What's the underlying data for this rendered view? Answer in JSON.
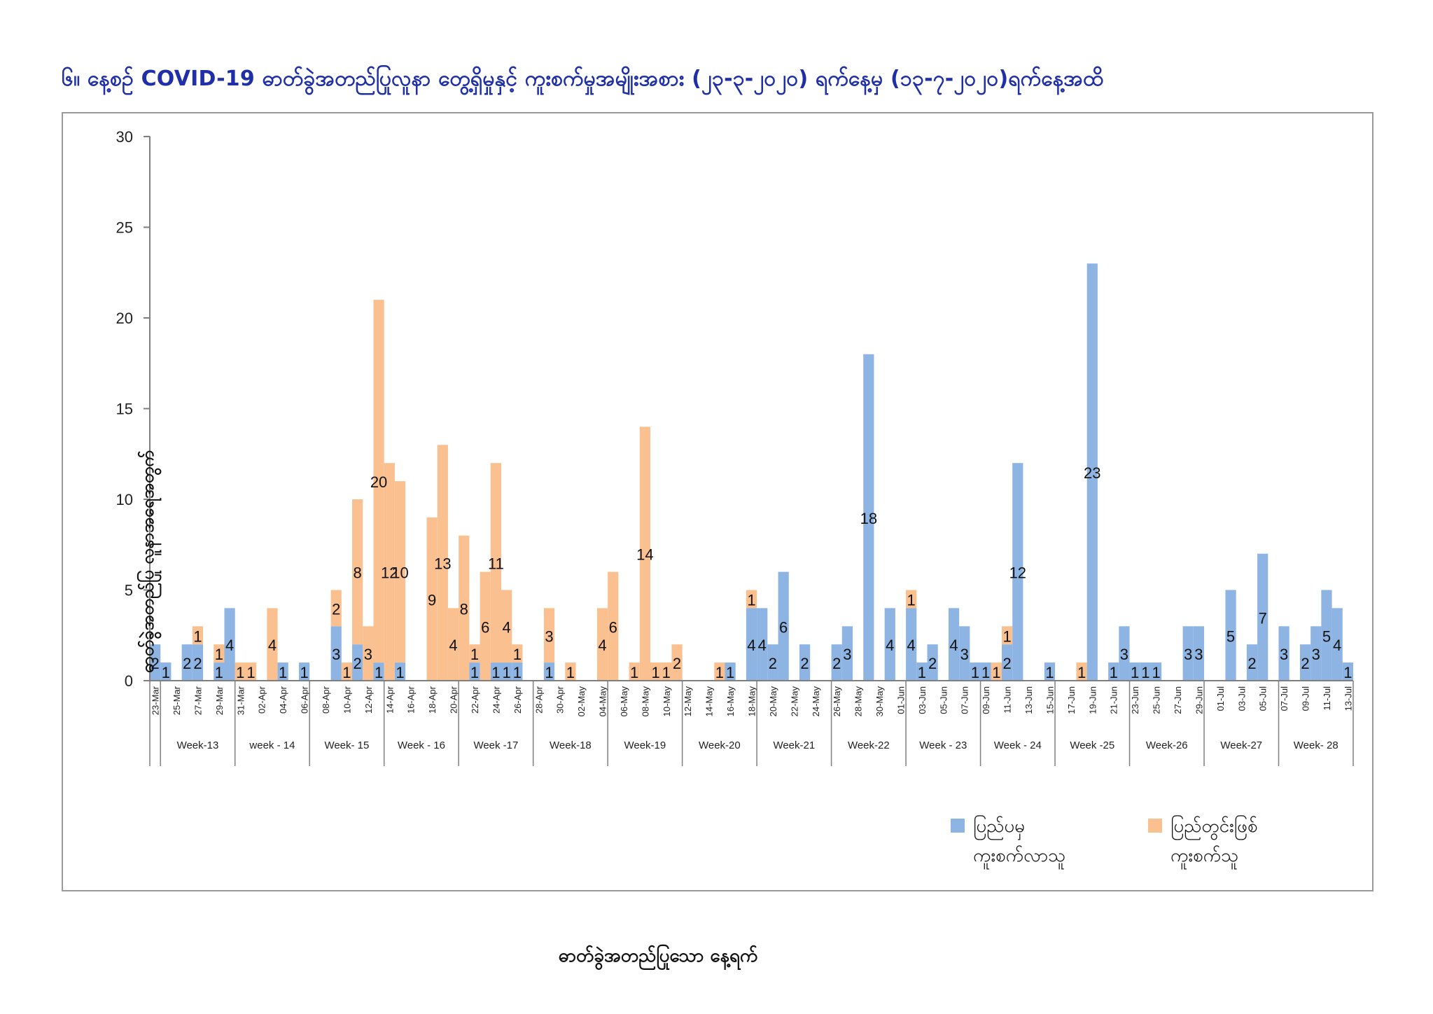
{
  "page": {
    "title": "၆။ နေ့စဉ် COVID-19 ဓာတ်ခွဲအတည်ပြုလူနာ တွေ့ရှိမှုနှင့် ကူးစက်မှုအမျိုးအစား (၂၃-၃-၂၀၂၀) ရက်နေ့မှ (၁၃-၇-၂၀၂၀)ရက်နေ့အထိ"
  },
  "colors": {
    "imported": "#8DB4E2",
    "local": "#FAC090",
    "title": "#1f2fa8",
    "axis": "#7f7f7f"
  },
  "chart_data": {
    "type": "bar",
    "stacked": true,
    "ylabel": "ဓာတ်ခွဲအတည်ပြု လူနာအရေအတွက်",
    "xlabel": "ဓာတ်ခွဲအတည်ပြုသော နေ့ရက်",
    "ylim": [
      0,
      30
    ],
    "yticks": [
      0,
      5,
      10,
      15,
      20,
      25,
      30
    ],
    "legend_position": "bottom-right",
    "dates": [
      "23-Mar",
      "24-Mar",
      "25-Mar",
      "26-Mar",
      "27-Mar",
      "28-Mar",
      "29-Mar",
      "30-Mar",
      "31-Mar",
      "01-Apr",
      "02-Apr",
      "03-Apr",
      "04-Apr",
      "05-Apr",
      "06-Apr",
      "07-Apr",
      "08-Apr",
      "09-Apr",
      "10-Apr",
      "11-Apr",
      "12-Apr",
      "13-Apr",
      "14-Apr",
      "15-Apr",
      "16-Apr",
      "17-Apr",
      "18-Apr",
      "19-Apr",
      "20-Apr",
      "21-Apr",
      "22-Apr",
      "23-Apr",
      "24-Apr",
      "25-Apr",
      "26-Apr",
      "27-Apr",
      "28-Apr",
      "29-Apr",
      "30-Apr",
      "01-May",
      "02-May",
      "03-May",
      "04-May",
      "05-May",
      "06-May",
      "07-May",
      "08-May",
      "09-May",
      "10-May",
      "11-May",
      "12-May",
      "13-May",
      "14-May",
      "15-May",
      "16-May",
      "17-May",
      "18-May",
      "19-May",
      "20-May",
      "21-May",
      "22-May",
      "23-May",
      "24-May",
      "25-May",
      "26-May",
      "27-May",
      "28-May",
      "29-May",
      "30-May",
      "31-May",
      "01-Jun",
      "02-Jun",
      "03-Jun",
      "04-Jun",
      "05-Jun",
      "06-Jun",
      "07-Jun",
      "08-Jun",
      "09-Jun",
      "10-Jun",
      "11-Jun",
      "12-Jun",
      "13-Jun",
      "14-Jun",
      "15-Jun",
      "16-Jun",
      "17-Jun",
      "18-Jun",
      "19-Jun",
      "20-Jun",
      "21-Jun",
      "22-Jun",
      "23-Jun",
      "24-Jun",
      "25-Jun",
      "26-Jun",
      "27-Jun",
      "28-Jun",
      "29-Jun",
      "30-Jun",
      "01-Jul",
      "02-Jul",
      "03-Jul",
      "04-Jul",
      "05-Jul",
      "06-Jul",
      "07-Jul",
      "08-Jul",
      "09-Jul",
      "10-Jul",
      "11-Jul",
      "12-Jul",
      "13-Jul"
    ],
    "tick_labels": [
      "23-Mar",
      "25-Mar",
      "27-Mar",
      "29-Mar",
      "31-Mar",
      "02-Apr",
      "04-Apr",
      "06-Apr",
      "08-Apr",
      "10-Apr",
      "12-Apr",
      "14-Apr",
      "16-Apr",
      "18-Apr",
      "20-Apr",
      "22-Apr",
      "24-Apr",
      "26-Apr",
      "28-Apr",
      "30-Apr",
      "02-May",
      "04-May",
      "06-May",
      "08-May",
      "10-May",
      "12-May",
      "14-May",
      "16-May",
      "18-May",
      "20-May",
      "22-May",
      "24-May",
      "26-May",
      "28-May",
      "30-May",
      "01-Jun",
      "03-Jun",
      "05-Jun",
      "07-Jun",
      "09-Jun",
      "11-Jun",
      "13-Jun",
      "15-Jun",
      "17-Jun",
      "19-Jun",
      "21-Jun",
      "23-Jun",
      "25-Jun",
      "27-Jun",
      "29-Jun",
      "01-Jul",
      "03-Jul",
      "05-Jul",
      "07-Jul",
      "09-Jul",
      "11-Jul",
      "13-Jul"
    ],
    "weeks": [
      {
        "label": "Week-13",
        "start": "24-Mar",
        "end": "30-Mar"
      },
      {
        "label": "week - 14",
        "start": "31-Mar",
        "end": "06-Apr"
      },
      {
        "label": "Week- 15",
        "start": "07-Apr",
        "end": "13-Apr"
      },
      {
        "label": "Week - 16",
        "start": "14-Apr",
        "end": "20-Apr"
      },
      {
        "label": "Week -17",
        "start": "21-Apr",
        "end": "27-Apr"
      },
      {
        "label": "Week-18",
        "start": "28-Apr",
        "end": "04-May"
      },
      {
        "label": "Week-19",
        "start": "05-May",
        "end": "11-May"
      },
      {
        "label": "Week-20",
        "start": "12-May",
        "end": "18-May"
      },
      {
        "label": "Week-21",
        "start": "19-May",
        "end": "25-May"
      },
      {
        "label": "Week-22",
        "start": "26-May",
        "end": "01-Jun"
      },
      {
        "label": "Week - 23",
        "start": "02-Jun",
        "end": "08-Jun"
      },
      {
        "label": "Week - 24",
        "start": "09-Jun",
        "end": "15-Jun"
      },
      {
        "label": "Week -25",
        "start": "16-Jun",
        "end": "22-Jun"
      },
      {
        "label": "Week-26",
        "start": "23-Jun",
        "end": "29-Jun"
      },
      {
        "label": "Week-27",
        "start": "30-Jun",
        "end": "06-Jul"
      },
      {
        "label": "Week- 28",
        "start": "07-Jul",
        "end": "13-Jul"
      }
    ],
    "series": [
      {
        "name": "ပြည်ပမှ ကူးစက်လာသူ",
        "color": "#8DB4E2",
        "values": [
          2,
          1,
          0,
          2,
          2,
          0,
          1,
          4,
          0,
          0,
          0,
          0,
          1,
          0,
          1,
          0,
          0,
          3,
          0,
          2,
          0,
          1,
          0,
          1,
          0,
          0,
          0,
          0,
          0,
          0,
          1,
          0,
          1,
          1,
          1,
          0,
          0,
          1,
          0,
          0,
          0,
          0,
          0,
          0,
          0,
          0,
          0,
          0,
          0,
          0,
          0,
          0,
          0,
          0,
          1,
          0,
          4,
          4,
          2,
          6,
          0,
          2,
          0,
          0,
          2,
          3,
          0,
          18,
          0,
          4,
          0,
          4,
          1,
          2,
          0,
          4,
          3,
          1,
          1,
          0,
          2,
          12,
          0,
          0,
          1,
          0,
          0,
          0,
          23,
          0,
          1,
          3,
          1,
          1,
          1,
          0,
          0,
          3,
          3,
          0,
          0,
          5,
          0,
          2,
          7,
          0,
          3,
          0,
          2,
          3,
          5,
          4,
          1
        ]
      },
      {
        "name": "ပြည်တွင်းဖြစ် ကူးစက်သူ",
        "color": "#FAC090",
        "values": [
          0,
          0,
          0,
          0,
          1,
          0,
          1,
          0,
          1,
          1,
          0,
          4,
          0,
          0,
          0,
          0,
          0,
          2,
          1,
          8,
          3,
          20,
          12,
          10,
          0,
          0,
          9,
          13,
          4,
          8,
          1,
          6,
          11,
          4,
          1,
          0,
          0,
          3,
          0,
          1,
          0,
          0,
          4,
          6,
          0,
          1,
          14,
          1,
          1,
          2,
          0,
          0,
          0,
          1,
          0,
          0,
          1,
          0,
          0,
          0,
          0,
          0,
          0,
          0,
          0,
          0,
          0,
          0,
          0,
          0,
          0,
          1,
          0,
          0,
          0,
          0,
          0,
          0,
          0,
          1,
          1,
          0,
          0,
          0,
          0,
          0,
          0,
          1,
          0,
          0,
          0,
          0,
          0,
          0,
          0,
          0,
          0,
          0,
          0,
          0,
          0,
          0,
          0,
          0,
          0,
          0,
          0,
          0,
          0,
          0,
          0,
          0,
          0
        ]
      }
    ]
  },
  "legend": {
    "imported": "ပြည်ပမှ\nကူးစက်လာသူ",
    "local": "ပြည်တွင်းဖြစ်\nကူးစက်သူ"
  }
}
